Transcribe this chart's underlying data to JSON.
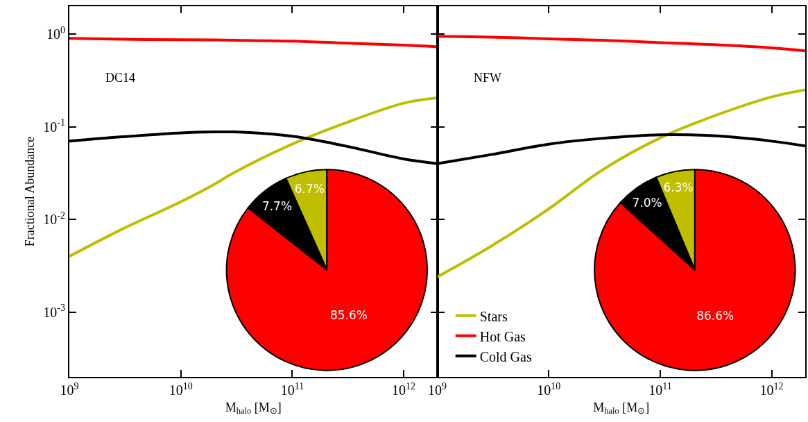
{
  "chart_data": [
    {
      "type": "line",
      "xlabel": "M$_{halo}$ [M$_{⊙}$]",
      "ylabel": "Fractional Abundance",
      "annotations": [
        "DC14"
      ],
      "log": "xy",
      "grid": false,
      "legend": "bottom right",
      "x": [
        1000000000.0,
        3000000000.0,
        10000000000.0,
        20000000000.0,
        30000000000.0,
        100000000000.0,
        300000000000.0,
        1000000000000.0,
        2000000000000.0
      ],
      "xlim": [
        1000000000.0,
        2000000000000.0
      ],
      "ylim": [
        0.0002,
        2
      ],
      "xticks": [
        {
          "value": 1000000000.0,
          "label": "10$^{9}$"
        },
        {
          "value": 10000000000.0,
          "label": "10$^{10}$"
        },
        {
          "value": 100000000000.0,
          "label": "10$^{11}$"
        },
        {
          "value": 1000000000000.0,
          "label": "10$^{12}$"
        }
      ],
      "yticks": [
        {
          "value": 0.001,
          "label": "10$^{-3}$"
        },
        {
          "value": 0.01,
          "label": "10$^{-2}$"
        },
        {
          "value": 0.1,
          "label": "10$^{-1}$"
        },
        {
          "value": 1,
          "label": "10$^{0}$"
        }
      ],
      "series": [
        {
          "name": "Stars",
          "color": "#bfbf00",
          "values": [
            0.004,
            0.0079,
            0.0155,
            0.024,
            0.032,
            0.065,
            0.11,
            0.18,
            0.205
          ]
        },
        {
          "name": "Hot Gas",
          "color": "#ff0000",
          "values": [
            0.9,
            0.88,
            0.87,
            0.865,
            0.86,
            0.84,
            0.8,
            0.76,
            0.73
          ]
        },
        {
          "name": "Cold Gas",
          "color": "#000000",
          "values": [
            0.07,
            0.078,
            0.086,
            0.088,
            0.088,
            0.079,
            0.062,
            0.045,
            0.04
          ]
        }
      ]
    },
    {
      "type": "pie",
      "categories": [
        null,
        null,
        null
      ],
      "values": [
        6.7,
        7.7,
        85.6
      ],
      "colors": [
        "#bfbf00",
        "#000000",
        "#ff0000"
      ],
      "value_labels": [
        "6.7%",
        "7.7%",
        "85.6%"
      ]
    },
    {
      "type": "line",
      "xlabel": "M$_{halo}$ [M$_{⊙}$]",
      "annotations": [
        "NFW"
      ],
      "log": "xy",
      "grid": false,
      "legend": "bottom left",
      "tick_labels": "x",
      "x": [
        1000000000.0,
        3000000000.0,
        10000000000.0,
        30000000000.0,
        100000000000.0,
        300000000000.0,
        1000000000000.0,
        2000000000000.0
      ],
      "xlim": [
        1000000000.0,
        2000000000000.0
      ],
      "ylim": [
        0.0002,
        2
      ],
      "xticks": [
        {
          "value": 1000000000.0,
          "label": "10$^{9}$"
        },
        {
          "value": 10000000000.0,
          "label": "10$^{10}$"
        },
        {
          "value": 100000000000.0,
          "label": "10$^{11}$"
        },
        {
          "value": 1000000000000.0,
          "label": "10$^{12}$"
        }
      ],
      "yticks": [
        {
          "value": 0.001,
          "label": "10$^{-3}$"
        },
        {
          "value": 0.01,
          "label": "10$^{-2}$"
        },
        {
          "value": 0.1,
          "label": "10$^{-1}$"
        },
        {
          "value": 1,
          "label": "10$^{0}$"
        }
      ],
      "series": [
        {
          "name": "Stars",
          "color": "#bfbf00",
          "values": [
            0.0024,
            0.0051,
            0.013,
            0.034,
            0.076,
            0.13,
            0.21,
            0.25
          ]
        },
        {
          "name": "Hot Gas",
          "color": "#ff0000",
          "values": [
            0.95,
            0.93,
            0.89,
            0.86,
            0.81,
            0.77,
            0.71,
            0.66
          ]
        },
        {
          "name": "Cold Gas",
          "color": "#000000",
          "values": [
            0.04,
            0.05,
            0.065,
            0.075,
            0.082,
            0.08,
            0.07,
            0.062
          ]
        }
      ]
    },
    {
      "type": "pie",
      "categories": [
        null,
        null,
        null
      ],
      "values": [
        6.3,
        7.0,
        86.6
      ],
      "colors": [
        "#bfbf00",
        "#000000",
        "#ff0000"
      ],
      "value_labels": [
        "6.3%",
        "7.0%",
        "86.6%"
      ]
    }
  ]
}
